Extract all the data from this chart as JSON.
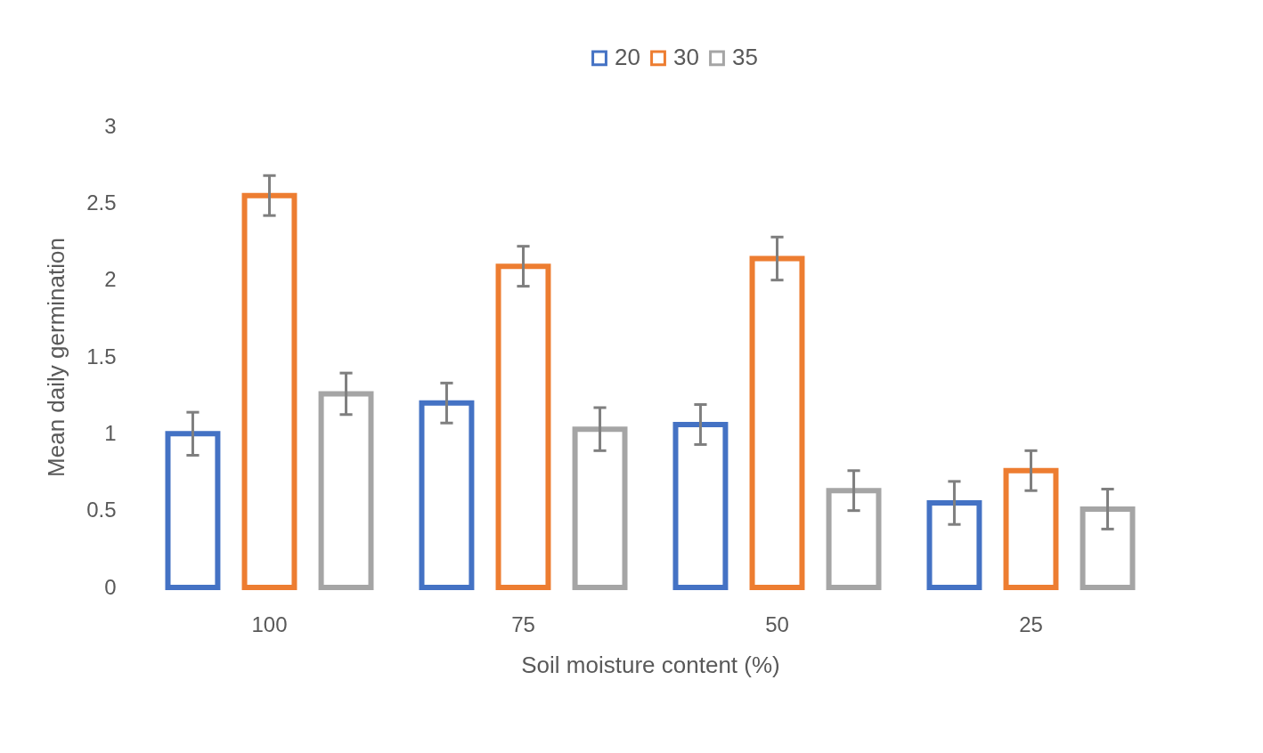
{
  "chart_data": {
    "type": "bar",
    "xlabel": "Soil moisture content (%)",
    "ylabel": "Mean daily germination",
    "categories": [
      "100",
      "75",
      "50",
      "25"
    ],
    "series": [
      {
        "name": "20",
        "color": "#4472c4",
        "values": [
          1.0,
          1.2,
          1.06,
          0.55
        ],
        "errors": [
          0.14,
          0.13,
          0.13,
          0.14
        ]
      },
      {
        "name": "30",
        "color": "#ed7d31",
        "values": [
          2.55,
          2.09,
          2.14,
          0.76
        ],
        "errors": [
          0.13,
          0.13,
          0.14,
          0.13
        ]
      },
      {
        "name": "35",
        "color": "#a5a5a5",
        "values": [
          1.26,
          1.03,
          0.63,
          0.51
        ],
        "errors": [
          0.135,
          0.14,
          0.13,
          0.13
        ]
      }
    ],
    "ylim": [
      0,
      3
    ],
    "yticks": [
      0,
      0.5,
      1,
      1.5,
      2,
      2.5,
      3
    ],
    "grid": false,
    "legend": "top"
  }
}
